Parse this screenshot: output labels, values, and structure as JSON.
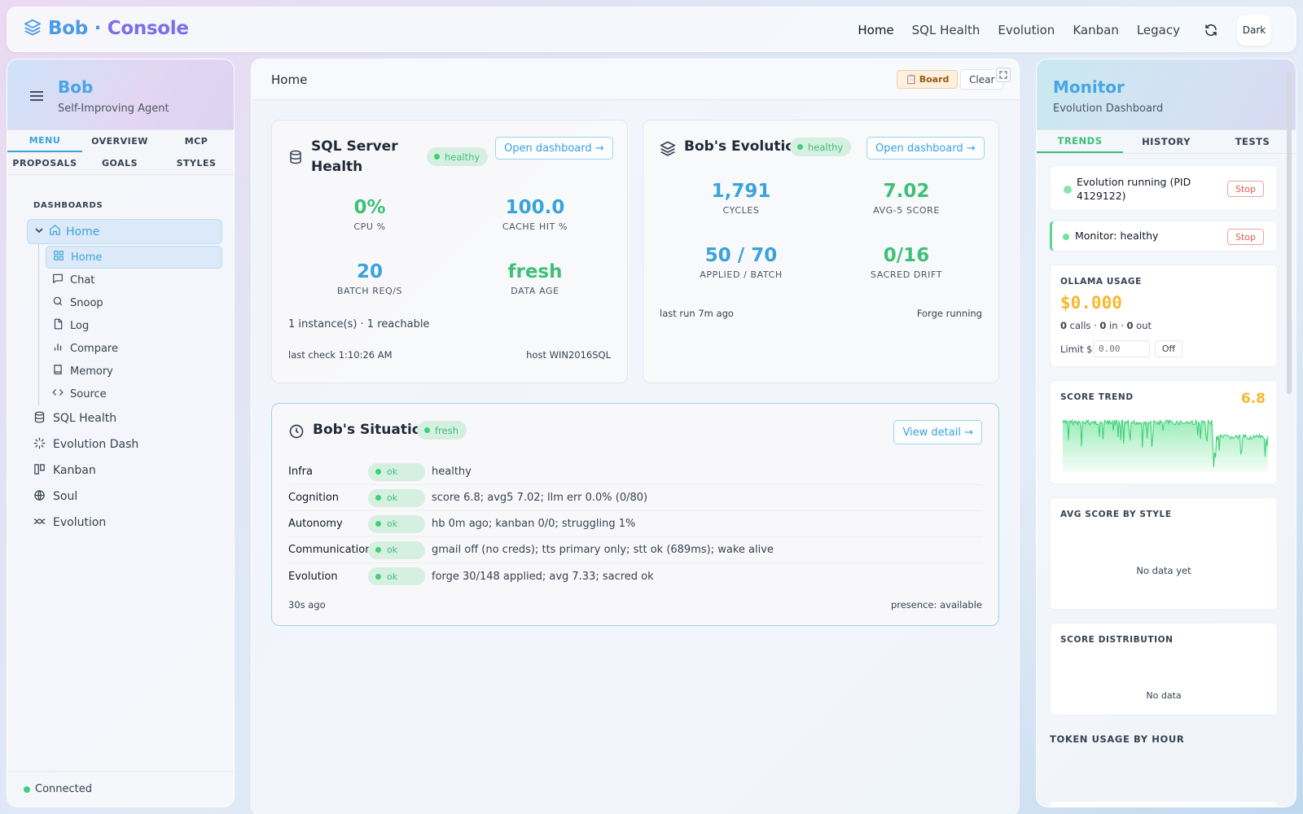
{
  "topbar": {
    "brand": {
      "name": "Bob",
      "separator": " · ",
      "section": "Console"
    },
    "nav": [
      "Home",
      "SQL Health",
      "Evolution",
      "Kanban",
      "Legacy"
    ],
    "theme_label": "Dark"
  },
  "sidebar": {
    "title": "Bob",
    "subtitle": "Self-Improving Agent",
    "tabs": [
      "MENU",
      "OVERVIEW",
      "MCP",
      "PROPOSALS",
      "GOALS",
      "STYLES"
    ],
    "section_label": "DASHBOARDS",
    "tree_parent": "Home",
    "tree_children": [
      "Home",
      "Chat",
      "Snoop",
      "Log",
      "Compare",
      "Memory",
      "Source"
    ],
    "items": [
      "SQL Health",
      "Evolution Dash",
      "Kanban",
      "Soul",
      "Evolution"
    ],
    "status": "Connected"
  },
  "main": {
    "title": "Home",
    "board_label": "Board",
    "clear_label": "Clear",
    "sql_card": {
      "title_line1": "SQL Server",
      "title_line2": "Health",
      "status": "healthy",
      "open_label": "Open dashboard →",
      "metrics": [
        {
          "value": "0%",
          "label": "CPU %"
        },
        {
          "value": "100.0",
          "label": "CACHE HIT %"
        },
        {
          "value": "20",
          "label": "BATCH REQ/S"
        },
        {
          "value": "fresh",
          "label": "DATA AGE"
        }
      ],
      "instances": "1 instance(s) · 1 reachable",
      "last_check": "last check 1:10:26 AM",
      "host": "host WIN2016SQL"
    },
    "evo_card": {
      "title": "Bob's Evolution",
      "status": "healthy",
      "open_label": "Open dashboard →",
      "metrics": [
        {
          "value": "1,791",
          "label": "CYCLES"
        },
        {
          "value": "7.02",
          "label": "AVG-5 SCORE"
        },
        {
          "value": "50 / 70",
          "label": "APPLIED / BATCH"
        },
        {
          "value": "0/16",
          "label": "SACRED DRIFT"
        }
      ],
      "last_run": "last run 7m ago",
      "forge": "Forge running"
    },
    "situation": {
      "title": "Bob's Situation",
      "status": "fresh",
      "view_label": "View detail →",
      "rows": [
        {
          "key": "Infra",
          "status": "ok",
          "value": "healthy"
        },
        {
          "key": "Cognition",
          "status": "ok",
          "value": "score 6.8; avg5 7.02; llm err 0.0% (0/80)"
        },
        {
          "key": "Autonomy",
          "status": "ok",
          "value": "hb 0m ago; kanban 0/0; struggling 1%"
        },
        {
          "key": "Communication",
          "status": "ok",
          "value": "gmail off (no creds); tts primary only; stt ok (689ms); wake alive"
        },
        {
          "key": "Evolution",
          "status": "ok",
          "value": "forge 30/148 applied; avg 7.33; sacred ok"
        }
      ],
      "age": "30s ago",
      "presence": "presence: available"
    }
  },
  "monitor": {
    "title": "Monitor",
    "subtitle": "Evolution Dashboard",
    "tabs": [
      "TRENDS",
      "HISTORY",
      "TESTS"
    ],
    "evolution_status": "Evolution running (PID 4129122)",
    "monitor_status": "Monitor: healthy",
    "stop_label": "Stop",
    "ollama": {
      "label": "OLLAMA USAGE",
      "cost": "$0.000",
      "calls": "0",
      "calls_label": " calls · ",
      "in": "0",
      "in_label": " in · ",
      "out": "0",
      "out_label": " out",
      "limit_label": "Limit $",
      "limit_placeholder": "0.00",
      "off_label": "Off"
    },
    "score_trend": {
      "label": "SCORE TREND",
      "value": "6.8"
    },
    "avg_by_style": {
      "label": "AVG SCORE BY STYLE",
      "empty": "No data yet"
    },
    "distribution": {
      "label": "SCORE DISTRIBUTION",
      "empty": "No data"
    },
    "token_usage_label": "TOKEN USAGE BY HOUR"
  },
  "colors": {
    "accent": "#3ba3dc",
    "ok": "#3ec07a",
    "warn": "#f5b82e",
    "danger": "#e05656"
  }
}
